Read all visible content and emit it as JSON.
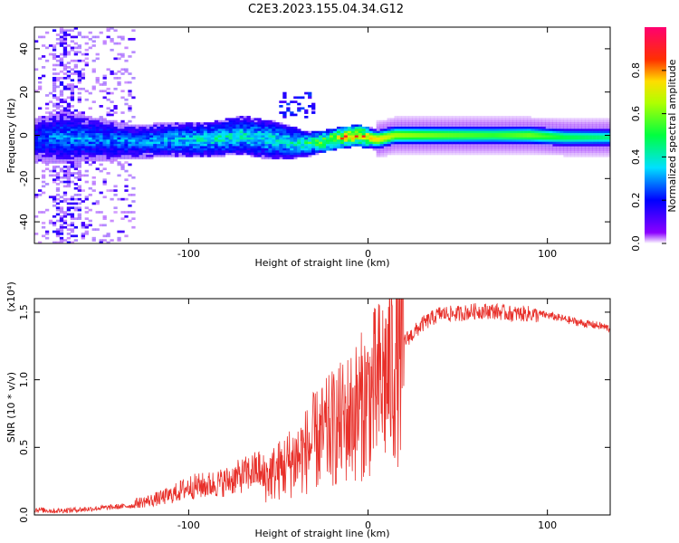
{
  "title": "C2E3.2023.155.04.34.G12",
  "colors": {
    "snr_line": "#e8302a",
    "axis": "#000000"
  },
  "chart_data": [
    {
      "type": "heatmap",
      "xlabel": "Height of straight line (km)",
      "ylabel": "Frequency (Hz)",
      "xlim": [
        -186,
        135
      ],
      "ylim": [
        -50,
        50
      ],
      "xticks": [
        -100,
        0,
        100
      ],
      "yticks": [
        -40,
        -20,
        0,
        20,
        40
      ],
      "colorbar": {
        "label": "Normalized spectral amplitude",
        "range": [
          0,
          1
        ],
        "ticks": [
          0.0,
          0.2,
          0.4,
          0.6,
          0.8
        ],
        "tick_labels": [
          "0.0",
          "0.2",
          "0.4",
          "0.6",
          "0.8"
        ]
      },
      "band": [
        {
          "x": -186,
          "f": -2,
          "amp": 0.25,
          "width": 10
        },
        {
          "x": -170,
          "f": -1,
          "amp": 0.3,
          "width": 12
        },
        {
          "x": -150,
          "f": -2,
          "amp": 0.3,
          "width": 10
        },
        {
          "x": -130,
          "f": -3,
          "amp": 0.3,
          "width": 8
        },
        {
          "x": -110,
          "f": -2,
          "amp": 0.35,
          "width": 8
        },
        {
          "x": -90,
          "f": -2,
          "amp": 0.4,
          "width": 8
        },
        {
          "x": -70,
          "f": 0,
          "amp": 0.4,
          "width": 9
        },
        {
          "x": -55,
          "f": -2,
          "amp": 0.4,
          "width": 9
        },
        {
          "x": -45,
          "f": -3,
          "amp": 0.4,
          "width": 8
        },
        {
          "x": -35,
          "f": -4,
          "amp": 0.45,
          "width": 6
        },
        {
          "x": -25,
          "f": -3,
          "amp": 0.6,
          "width": 5
        },
        {
          "x": -15,
          "f": -1,
          "amp": 0.75,
          "width": 5
        },
        {
          "x": -5,
          "f": 0,
          "amp": 0.8,
          "width": 5
        },
        {
          "x": 5,
          "f": -2,
          "amp": 0.75,
          "width": 5
        },
        {
          "x": 15,
          "f": 0,
          "amp": 0.65,
          "width": 5
        },
        {
          "x": 40,
          "f": 0,
          "amp": 0.6,
          "width": 5
        },
        {
          "x": 70,
          "f": 0,
          "amp": 0.55,
          "width": 5
        },
        {
          "x": 90,
          "f": 0,
          "amp": 0.6,
          "width": 5
        },
        {
          "x": 110,
          "f": -1,
          "amp": 0.5,
          "width": 5
        },
        {
          "x": 135,
          "f": -1,
          "amp": 0.45,
          "width": 5
        }
      ]
    },
    {
      "type": "line",
      "xlabel": "Height of straight line (km)",
      "ylabel": "SNR (10 * v/v)",
      "y_multiplier": "(x10⁴)",
      "xlim": [
        -186,
        135
      ],
      "ylim": [
        0,
        1.6
      ],
      "xticks": [
        -100,
        0,
        100
      ],
      "yticks": [
        0.0,
        0.5,
        1.0,
        1.5
      ],
      "ytick_labels": [
        "0.0",
        "0.5",
        "1.0",
        "1.5"
      ],
      "series": [
        {
          "x": [
            -186,
            -175,
            -160,
            -150,
            -140,
            -130,
            -120,
            -110,
            -100,
            -90,
            -80,
            -70,
            -60,
            -50,
            -45,
            -40,
            -35,
            -30,
            -25,
            -20,
            -15,
            -10,
            -5,
            0,
            5,
            10,
            15,
            20,
            25,
            30,
            40,
            50,
            60,
            70,
            80,
            90,
            100,
            110,
            120,
            130,
            135
          ],
          "y": [
            0.04,
            0.03,
            0.04,
            0.05,
            0.06,
            0.07,
            0.09,
            0.12,
            0.17,
            0.18,
            0.2,
            0.24,
            0.28,
            0.35,
            0.4,
            0.45,
            0.5,
            0.58,
            0.62,
            0.68,
            0.72,
            0.78,
            0.84,
            0.92,
            1.0,
            1.1,
            1.2,
            1.3,
            1.35,
            1.42,
            1.5,
            1.5,
            1.52,
            1.52,
            1.5,
            1.5,
            1.48,
            1.45,
            1.42,
            1.4,
            1.38
          ]
        }
      ]
    }
  ]
}
